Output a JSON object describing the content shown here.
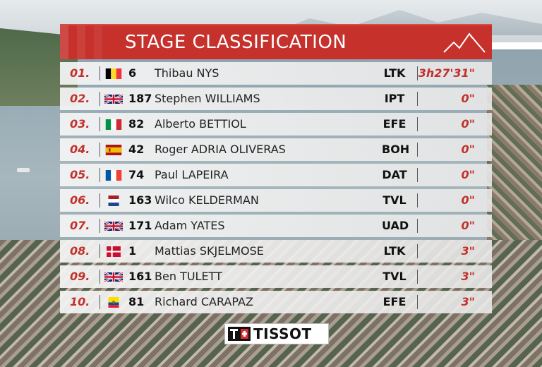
{
  "header": {
    "title": "STAGE CLASSIFICATION"
  },
  "rows": [
    {
      "pos": "01.",
      "country": "Belgium",
      "bib": "6",
      "name": "Thibau NYS",
      "team": "LTK",
      "time": "3h27'31\""
    },
    {
      "pos": "02.",
      "country": "United Kingdom",
      "bib": "187",
      "name": "Stephen WILLIAMS",
      "team": "IPT",
      "time": "0\""
    },
    {
      "pos": "03.",
      "country": "Italy",
      "bib": "82",
      "name": "Alberto BETTIOL",
      "team": "EFE",
      "time": "0\""
    },
    {
      "pos": "04.",
      "country": "Spain",
      "bib": "42",
      "name": "Roger ADRIA OLIVERAS",
      "team": "BOH",
      "time": "0\""
    },
    {
      "pos": "05.",
      "country": "France",
      "bib": "74",
      "name": "Paul LAPEIRA",
      "team": "DAT",
      "time": "0\""
    },
    {
      "pos": "06.",
      "country": "Netherlands",
      "bib": "163",
      "name": "Wilco KELDERMAN",
      "team": "TVL",
      "time": "0\""
    },
    {
      "pos": "07.",
      "country": "United Kingdom",
      "bib": "171",
      "name": "Adam YATES",
      "team": "UAD",
      "time": "0\""
    },
    {
      "pos": "08.",
      "country": "Denmark",
      "bib": "1",
      "name": "Mattias SKJELMOSE",
      "team": "LTK",
      "time": "3\""
    },
    {
      "pos": "09.",
      "country": "United Kingdom",
      "bib": "161",
      "name": "Ben TULETT",
      "team": "TVL",
      "time": "3\""
    },
    {
      "pos": "10.",
      "country": "Ecuador",
      "bib": "81",
      "name": "Richard CARAPAZ",
      "team": "EFE",
      "time": "3\""
    }
  ],
  "sponsor": {
    "logo_text": "TISSOT"
  },
  "colors": {
    "accent_red": "#c6312c",
    "row_bg": "#eeeeee"
  },
  "icons": {
    "header": "mountain-icon",
    "sponsor": "tissot-logo"
  }
}
